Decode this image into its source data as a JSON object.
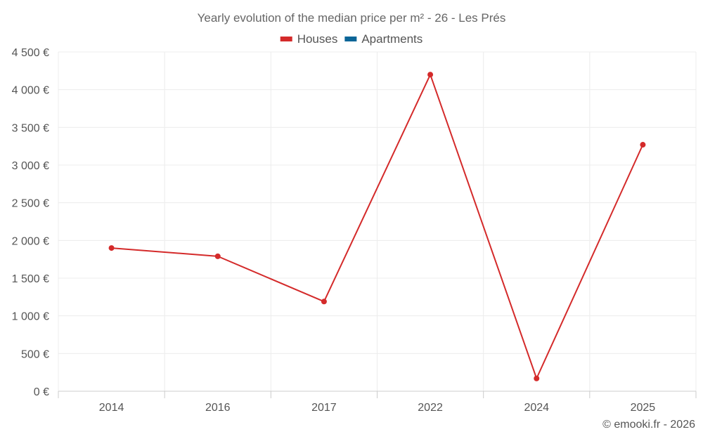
{
  "chart_data": {
    "type": "line",
    "title": "Yearly evolution of the median price per m² - 26 - Les Prés",
    "categories": [
      "2014",
      "2016",
      "2017",
      "2022",
      "2024",
      "2025"
    ],
    "series": [
      {
        "name": "Houses",
        "color": "#d42a2a",
        "values": [
          1900,
          1790,
          1190,
          4200,
          170,
          3270
        ]
      },
      {
        "name": "Apartments",
        "color": "#0b6597",
        "values": [
          null,
          null,
          null,
          null,
          null,
          null
        ]
      }
    ],
    "ylim": [
      0,
      4500
    ],
    "yticks": [
      0,
      500,
      1000,
      1500,
      2000,
      2500,
      3000,
      3500,
      4000,
      4500
    ],
    "ytick_labels": [
      "0 €",
      "500 €",
      "1 000 €",
      "1 500 €",
      "2 000 €",
      "2 500 €",
      "3 000 €",
      "3 500 €",
      "4 000 €",
      "4 500 €"
    ],
    "xlabel": "",
    "ylabel": "",
    "grid": true,
    "legend_position": "top-center"
  },
  "credit": "© emooki.fr - 2026"
}
